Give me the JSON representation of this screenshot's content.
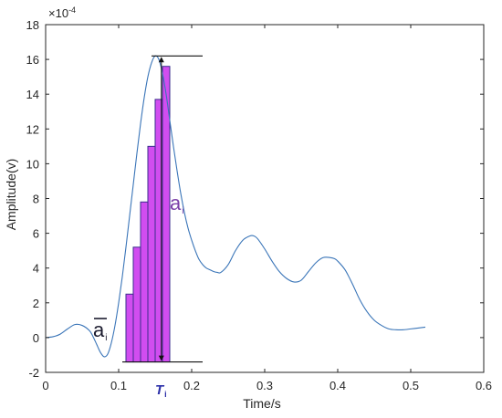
{
  "chart_data": {
    "type": "line",
    "xlabel": "Time/s",
    "ylabel": "Amplitude(v)",
    "exponent_label": "×10",
    "exponent_power": "-4",
    "xlim": [
      0,
      0.6
    ],
    "ylim": [
      -2,
      18
    ],
    "xticks": [
      "0",
      "0.1",
      "0.2",
      "0.3",
      "0.4",
      "0.5",
      "0.6"
    ],
    "yticks": [
      "-2",
      "0",
      "2",
      "4",
      "6",
      "8",
      "10",
      "12",
      "14",
      "16",
      "18"
    ],
    "grid": false,
    "line_color": "#3A75B8",
    "series": [
      {
        "x": [
          0,
          0.01,
          0.02,
          0.03,
          0.04,
          0.05,
          0.06,
          0.065,
          0.07,
          0.075,
          0.08,
          0.085,
          0.09,
          0.095,
          0.1,
          0.105,
          0.11,
          0.115,
          0.12,
          0.125,
          0.13,
          0.135,
          0.14,
          0.145,
          0.15,
          0.155,
          0.16,
          0.165,
          0.17,
          0.175,
          0.18,
          0.185,
          0.19,
          0.195,
          0.2,
          0.205,
          0.21,
          0.215,
          0.22,
          0.225,
          0.23,
          0.235,
          0.24,
          0.25,
          0.26,
          0.27,
          0.28,
          0.285,
          0.29,
          0.3,
          0.31,
          0.32,
          0.33,
          0.34,
          0.35,
          0.36,
          0.37,
          0.38,
          0.39,
          0.395,
          0.4,
          0.41,
          0.42,
          0.43,
          0.44,
          0.45,
          0.46,
          0.47,
          0.48,
          0.49,
          0.5,
          0.51,
          0.52
        ],
        "y": [
          0,
          0.05,
          0.2,
          0.5,
          0.75,
          0.7,
          0.4,
          0.05,
          -0.4,
          -0.85,
          -1.1,
          -0.95,
          -0.3,
          0.7,
          2.0,
          3.5,
          5.2,
          7.0,
          8.8,
          10.6,
          12.3,
          13.8,
          15.0,
          15.8,
          16.2,
          16.0,
          15.2,
          14.0,
          12.5,
          11.0,
          9.6,
          8.3,
          7.2,
          6.3,
          5.6,
          5.0,
          4.5,
          4.2,
          4.0,
          3.9,
          3.8,
          3.75,
          3.75,
          4.2,
          5.0,
          5.6,
          5.85,
          5.85,
          5.7,
          5.1,
          4.4,
          3.8,
          3.4,
          3.2,
          3.3,
          3.8,
          4.3,
          4.6,
          4.6,
          4.55,
          4.4,
          3.9,
          3.1,
          2.2,
          1.5,
          1.0,
          0.7,
          0.5,
          0.45,
          0.45,
          0.5,
          0.55,
          0.6
        ]
      }
    ],
    "bars": {
      "x": [
        0.11,
        0.12,
        0.13,
        0.14,
        0.15,
        0.16
      ],
      "values": [
        2.5,
        5.2,
        7.8,
        11.0,
        13.7,
        15.6
      ],
      "baseline": -1.4,
      "fill_color": "#D14DF0",
      "edge_color": "#3A2D8C",
      "bar_width": 0.01
    },
    "reference_lines": {
      "top": 16.2,
      "bottom": -1.4,
      "x_from": 0.11,
      "x_to": 0.21
    },
    "annotations": {
      "amplitude_label": "a",
      "amplitude_subscript": "i",
      "amplitude_color": "#7B3FA8",
      "mean_label": "a",
      "mean_subscript": "i",
      "mean_color": "#1b1b2e",
      "period_label": "T",
      "period_subscript": "i",
      "period_color": "#2B2FA8"
    }
  }
}
